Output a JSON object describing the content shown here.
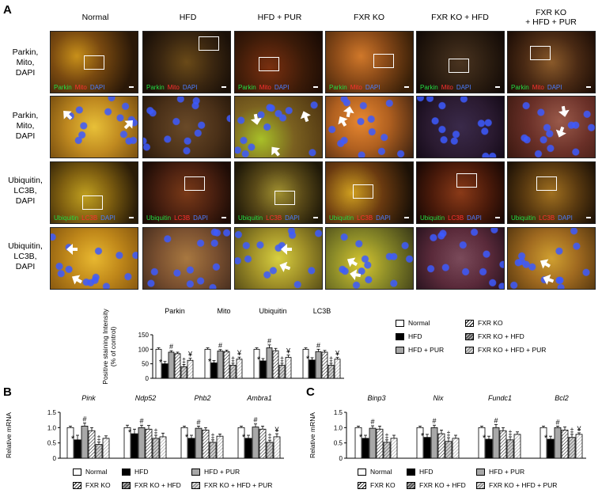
{
  "panel_labels": {
    "a": "A",
    "b": "B",
    "c": "C"
  },
  "columns": [
    "Normal",
    "HFD",
    "HFD + PUR",
    "FXR KO",
    "FXR KO + HFD",
    "FXR KO\n+ HFD + PUR"
  ],
  "rows": [
    "Parkin,\nMito,\nDAPI",
    "Parkin,\nMito,\nDAPI",
    "Ubiquitin,\nLC3B,\nDAPI",
    "Ubiquitin,\nLC3B,\nDAPI"
  ],
  "captions": {
    "row1": [
      {
        "t": "Parkin",
        "c": "#22dd44"
      },
      {
        "t": "Mito",
        "c": "#ff3030"
      },
      {
        "t": "DAPI",
        "c": "#4a7dff"
      }
    ],
    "row3": [
      {
        "t": "Ubiquitin",
        "c": "#22dd44"
      },
      {
        "t": "LC3B",
        "c": "#ff3030"
      },
      {
        "t": "DAPI",
        "c": "#4a7dff"
      }
    ]
  },
  "legend_a": [
    "Normal",
    "HFD",
    "HFD + PUR",
    "FXR KO",
    "FXR KO + HFD",
    "FXR KO + HFD + PUR"
  ],
  "legend_bc": [
    "Normal",
    "HFD",
    "HFD + PUR",
    "FXR KO",
    "FXR KO + HFD",
    "FXR KO + HFD + PUR"
  ],
  "colors": {
    "normal": "#ffffff",
    "hfd": "#000000",
    "hfd_pur": "#a8a8a8",
    "fxr": "hatch-light",
    "fxr_hfd": "hatch-dark",
    "fxr_hfd_pur": "hatch-gray"
  },
  "chart_data": [
    {
      "type": "bar",
      "id": "A",
      "ylabel": "Positive staining Intensity\n(% of control)",
      "ylim": [
        0,
        150
      ],
      "yticks": [
        0,
        50,
        100,
        150
      ],
      "groups": [
        "Parkin",
        "Mito",
        "Ubiquitin",
        "LC3B"
      ],
      "series_order": [
        "Normal",
        "HFD",
        "HFD + PUR",
        "FXR KO",
        "FXR KO + HFD",
        "FXR KO + HFD + PUR"
      ],
      "values": [
        [
          100,
          50,
          90,
          85,
          40,
          62
        ],
        [
          100,
          53,
          94,
          92,
          45,
          66
        ],
        [
          100,
          60,
          105,
          95,
          45,
          72
        ],
        [
          100,
          63,
          92,
          90,
          45,
          66
        ]
      ],
      "errors": [
        [
          5,
          8,
          5,
          5,
          8,
          7
        ],
        [
          5,
          8,
          5,
          5,
          7,
          7
        ],
        [
          5,
          8,
          10,
          8,
          7,
          8
        ],
        [
          5,
          8,
          8,
          6,
          7,
          6
        ]
      ],
      "marks": [
        [
          "",
          "*",
          "#",
          "",
          "‡",
          "¥"
        ],
        [
          "",
          "*",
          "#",
          "",
          "‡",
          "¥"
        ],
        [
          "",
          "*",
          "#",
          "",
          "‡",
          "¥"
        ],
        [
          "",
          "*",
          "#",
          "",
          "‡",
          "¥"
        ]
      ]
    },
    {
      "type": "bar",
      "id": "B",
      "ylabel": "Relative mRNA",
      "ylim": [
        0,
        1.5
      ],
      "yticks": [
        "0",
        "0.5",
        "1.0",
        "1.5"
      ],
      "ytick_values": [
        0,
        0.5,
        1.0,
        1.5
      ],
      "groups": [
        "Pink",
        "Ndp52",
        "Phb2",
        "Ambra1"
      ],
      "series_order": [
        "Normal",
        "HFD",
        "HFD + PUR",
        "FXR KO",
        "FXR KO + HFD",
        "FXR KO + HFD + PUR"
      ],
      "values": [
        [
          1.0,
          0.6,
          1.05,
          0.9,
          0.45,
          0.65
        ],
        [
          1.0,
          0.8,
          1.0,
          0.95,
          0.65,
          0.7
        ],
        [
          1.0,
          0.65,
          0.98,
          0.92,
          0.52,
          0.72
        ],
        [
          1.0,
          0.65,
          1.02,
          0.95,
          0.52,
          0.7
        ]
      ],
      "errors": [
        [
          0.05,
          0.15,
          0.1,
          0.1,
          0.08,
          0.08
        ],
        [
          0.08,
          0.15,
          0.08,
          0.12,
          0.1,
          0.12
        ],
        [
          0.05,
          0.1,
          0.07,
          0.08,
          0.08,
          0.07
        ],
        [
          0.05,
          0.1,
          0.1,
          0.1,
          0.07,
          0.1
        ]
      ],
      "marks": [
        [
          "",
          "*",
          "#",
          "",
          "‡",
          ""
        ],
        [
          "",
          "*",
          "#",
          "",
          "‡",
          ""
        ],
        [
          "",
          "*",
          "#",
          "",
          "‡",
          ""
        ],
        [
          "",
          "*",
          "#",
          "",
          "‡",
          "¥"
        ]
      ]
    },
    {
      "type": "bar",
      "id": "C",
      "ylabel": "Relative mRNA",
      "ylim": [
        0,
        1.5
      ],
      "yticks": [
        "0",
        "0.5",
        "1.0",
        "1.5"
      ],
      "ytick_values": [
        0,
        0.5,
        1.0,
        1.5
      ],
      "groups": [
        "Binp3",
        "Nix",
        "Fundc1",
        "Bcl2"
      ],
      "series_order": [
        "Normal",
        "HFD",
        "HFD + PUR",
        "FXR KO",
        "FXR KO + HFD",
        "FXR KO + HFD + PUR"
      ],
      "values": [
        [
          1.0,
          0.65,
          0.98,
          0.95,
          0.52,
          0.65
        ],
        [
          1.0,
          0.68,
          1.0,
          0.8,
          0.55,
          0.65
        ],
        [
          1.0,
          0.62,
          1.0,
          0.9,
          0.6,
          0.78
        ],
        [
          1.0,
          0.62,
          1.0,
          0.92,
          0.68,
          0.78
        ]
      ],
      "errors": [
        [
          0.05,
          0.1,
          0.08,
          0.1,
          0.08,
          0.1
        ],
        [
          0.05,
          0.1,
          0.08,
          0.12,
          0.12,
          0.1
        ],
        [
          0.05,
          0.1,
          0.1,
          0.1,
          0.1,
          0.08
        ],
        [
          0.05,
          0.1,
          0.05,
          0.1,
          0.1,
          0.05
        ]
      ],
      "marks": [
        [
          "",
          "*",
          "#",
          "",
          "‡",
          ""
        ],
        [
          "",
          "*",
          "#",
          "",
          "‡",
          ""
        ],
        [
          "",
          "*",
          "#",
          "",
          "‡",
          ""
        ],
        [
          "",
          "*",
          "#",
          "",
          "‡",
          "¥"
        ]
      ]
    }
  ]
}
